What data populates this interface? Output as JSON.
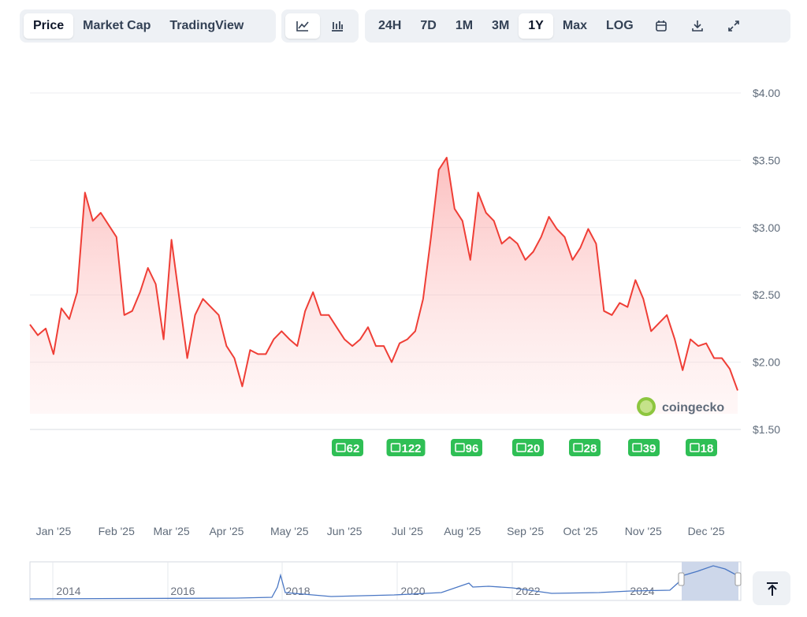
{
  "toolbar": {
    "views": [
      "Price",
      "Market Cap",
      "TradingView"
    ],
    "ranges": [
      "24H",
      "7D",
      "1M",
      "3M",
      "1Y",
      "Max",
      "LOG"
    ]
  },
  "chart_data": {
    "type": "line",
    "categories": [
      null,
      null,
      null,
      "Jan '25",
      null,
      null,
      null,
      null,
      null,
      null,
      null,
      "Feb '25",
      null,
      null,
      null,
      null,
      null,
      null,
      "Mar '25",
      null,
      null,
      null,
      null,
      null,
      null,
      "Apr '25",
      null,
      null,
      null,
      null,
      null,
      null,
      null,
      "May '25",
      null,
      null,
      null,
      null,
      null,
      null,
      "Jun '25",
      null,
      null,
      null,
      null,
      null,
      null,
      null,
      "Jul '25",
      null,
      null,
      null,
      null,
      null,
      null,
      "Aug '25",
      null,
      null,
      null,
      null,
      null,
      null,
      null,
      "Sep '25",
      null,
      null,
      null,
      null,
      null,
      null,
      "Oct '25",
      null,
      null,
      null,
      null,
      null,
      null,
      null,
      "Nov '25",
      null,
      null,
      null,
      null,
      null,
      null,
      null,
      "Dec '25",
      null,
      null,
      null,
      null
    ],
    "values": [
      2.28,
      2.2,
      2.25,
      2.06,
      2.4,
      2.32,
      2.52,
      3.26,
      3.05,
      3.11,
      3.02,
      2.93,
      2.35,
      2.38,
      2.52,
      2.7,
      2.58,
      2.17,
      2.91,
      2.47,
      2.03,
      2.35,
      2.47,
      2.41,
      2.35,
      2.12,
      2.03,
      1.82,
      2.09,
      2.06,
      2.06,
      2.17,
      2.23,
      2.17,
      2.12,
      2.38,
      2.52,
      2.35,
      2.35,
      2.26,
      2.17,
      2.12,
      2.17,
      2.26,
      2.12,
      2.12,
      2.0,
      2.14,
      2.17,
      2.23,
      2.47,
      2.93,
      3.43,
      3.52,
      3.14,
      3.05,
      2.76,
      3.26,
      3.11,
      3.05,
      2.88,
      2.93,
      2.88,
      2.76,
      2.82,
      2.93,
      3.08,
      2.99,
      2.93,
      2.76,
      2.85,
      2.99,
      2.88,
      2.38,
      2.35,
      2.44,
      2.41,
      2.61,
      2.47,
      2.23,
      2.29,
      2.35,
      2.17,
      1.94,
      2.17,
      2.12,
      2.14,
      2.03,
      2.03,
      1.95,
      1.79
    ],
    "color": "#ef3e36",
    "ylim": [
      1.5,
      4.0
    ],
    "yticks": [
      {
        "value": 1.5,
        "label": "$1.50"
      },
      {
        "value": 2.0,
        "label": "$2.00"
      },
      {
        "value": 2.5,
        "label": "$2.50"
      },
      {
        "value": 3.0,
        "label": "$3.00"
      },
      {
        "value": 3.5,
        "label": "$3.50"
      },
      {
        "value": 4.0,
        "label": "$4.00"
      }
    ],
    "grid": true
  },
  "news_counts": [
    62,
    122,
    96,
    20,
    28,
    39,
    18
  ],
  "watermark": "coingecko",
  "navigator": {
    "labels": [
      "2014",
      "2016",
      "2018",
      "2020",
      "2022",
      "2024"
    ]
  }
}
